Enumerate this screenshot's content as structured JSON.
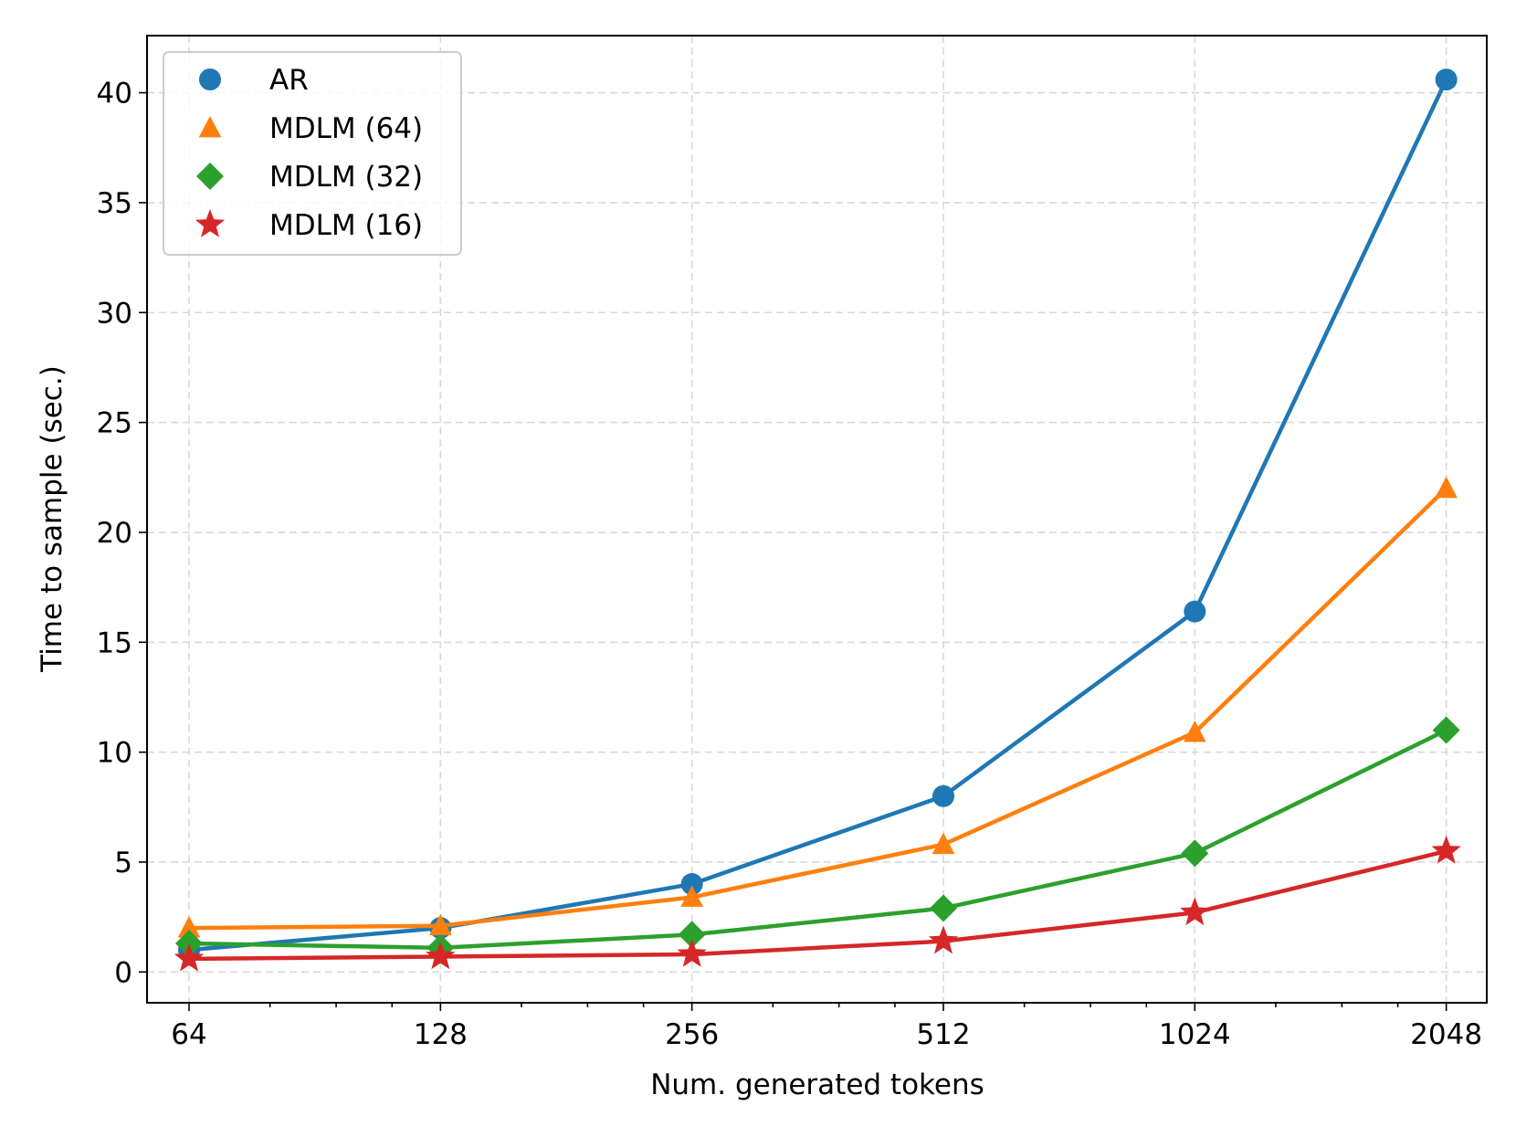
{
  "chart_data": {
    "type": "line",
    "title": "",
    "xlabel": "Num. generated tokens",
    "ylabel": "Time to sample (sec.)",
    "xscale": "log2",
    "x": [
      64,
      128,
      256,
      512,
      1024,
      2048
    ],
    "x_tick_labels": [
      "64",
      "128",
      "256",
      "512",
      "1024",
      "2048"
    ],
    "xlim": [
      57,
      2290
    ],
    "ylim": [
      -1.4,
      42.6
    ],
    "y_ticks": [
      0,
      5,
      10,
      15,
      20,
      25,
      30,
      35,
      40
    ],
    "y_tick_labels": [
      "0",
      "5",
      "10",
      "15",
      "20",
      "25",
      "30",
      "35",
      "40"
    ],
    "grid": true,
    "legend_position": "top-left",
    "series": [
      {
        "name": "AR",
        "color": "#1f77b4",
        "marker": "circle",
        "values": [
          1.0,
          2.0,
          4.0,
          8.0,
          16.4,
          40.6
        ]
      },
      {
        "name": "MDLM (64)",
        "color": "#ff7f0e",
        "marker": "triangle",
        "values": [
          2.0,
          2.1,
          3.4,
          5.8,
          10.9,
          22.0
        ]
      },
      {
        "name": "MDLM (32)",
        "color": "#2ca02c",
        "marker": "diamond",
        "values": [
          1.3,
          1.1,
          1.7,
          2.9,
          5.4,
          11.0
        ]
      },
      {
        "name": "MDLM (16)",
        "color": "#d62728",
        "marker": "star",
        "values": [
          0.6,
          0.7,
          0.8,
          1.4,
          2.7,
          5.5
        ]
      }
    ]
  }
}
